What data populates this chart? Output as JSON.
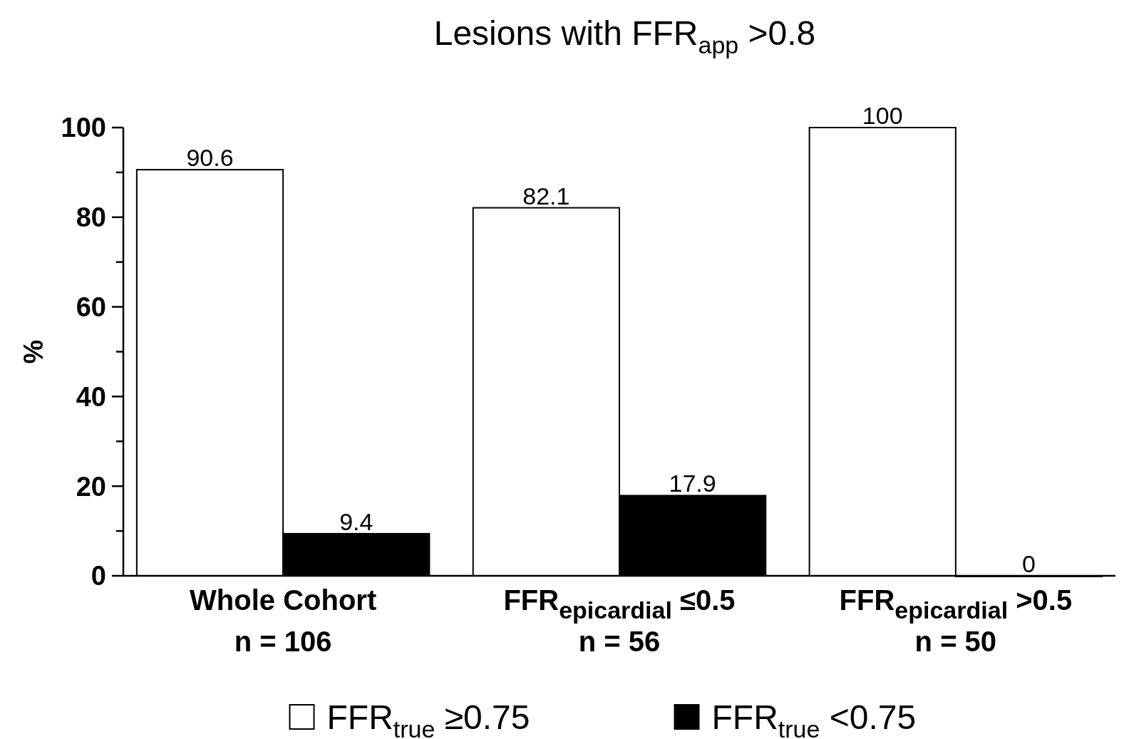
{
  "chart_data": {
    "type": "bar",
    "title": "Lesions with FFR$_{app}$ >0.8",
    "ylabel": "%",
    "categories": [
      "Whole Cohort\nn = 106",
      "FFR$_{epicardial}$ ≤0.5\nn = 56",
      "FFR$_{epicardial}$ >0.5\nn = 50"
    ],
    "series": [
      {
        "name": "FFR$_{true}$ ≥0.75",
        "color": "#ffffff",
        "values": [
          90.6,
          82.1,
          100
        ]
      },
      {
        "name": "FFR$_{true}$ <0.75",
        "color": "#000000",
        "values": [
          9.4,
          17.9,
          0
        ]
      }
    ],
    "ylim": [
      0,
      100
    ],
    "yticks": [
      0,
      {
        "value": 10,
        "label": null
      },
      20,
      {
        "value": 30,
        "label": null
      },
      40,
      {
        "value": 50,
        "label": null
      },
      60,
      {
        "value": 70,
        "label": null
      },
      80,
      {
        "value": 90,
        "label": null
      },
      100
    ],
    "data_labels": true,
    "legend": "bottom",
    "grid": false
  }
}
